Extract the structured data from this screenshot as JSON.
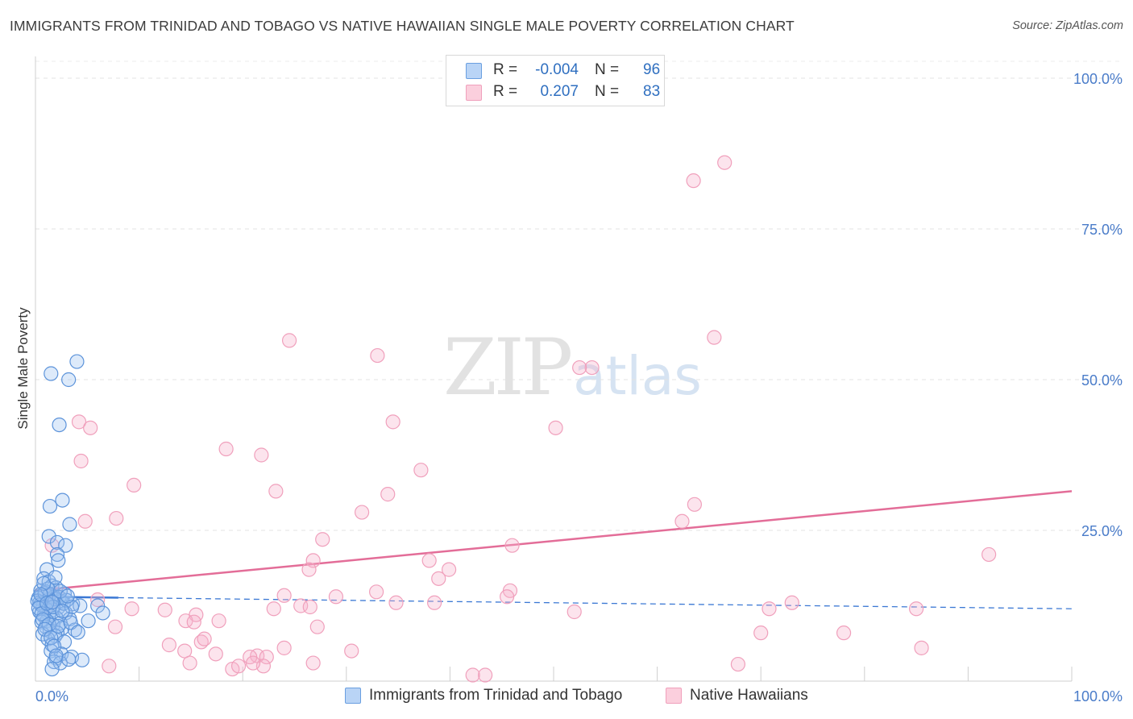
{
  "title": "IMMIGRANTS FROM TRINIDAD AND TOBAGO VS NATIVE HAWAIIAN SINGLE MALE POVERTY CORRELATION CHART",
  "source": "Source: ZipAtlas.com",
  "watermark": {
    "zip": "ZIP",
    "atlas": "atlas"
  },
  "legend": {
    "r_label": "R =",
    "n_label": "N =",
    "rows": [
      {
        "r": "-0.004",
        "n": "96"
      },
      {
        "r": "0.207",
        "n": "83"
      }
    ]
  },
  "bottom_legend": [
    "Immigrants from Trinidad and Tobago",
    "Native Hawaiians"
  ],
  "chart_data": {
    "type": "scatter",
    "title": "IMMIGRANTS FROM TRINIDAD AND TOBAGO VS NATIVE HAWAIIAN SINGLE MALE POVERTY CORRELATION CHART",
    "xlabel": "",
    "ylabel": "Single Male Poverty",
    "xlim": [
      0,
      100
    ],
    "ylim": [
      0,
      102
    ],
    "x_tick_labels": [
      "0.0%",
      "100.0%"
    ],
    "y_ticks": [
      25,
      50,
      75,
      100
    ],
    "y_tick_labels": [
      "25.0%",
      "50.0%",
      "75.0%",
      "100.0%"
    ],
    "grid": true,
    "legend_position": "top-center",
    "colors": {
      "blue": "#6a9fe0",
      "blue_line": "#3b78d4",
      "pink": "#f0a0bc",
      "pink_line": "#e36d98"
    },
    "series": [
      {
        "name": "Immigrants from Trinidad and Tobago",
        "r": -0.004,
        "n": 96,
        "trend": {
          "x0": 0,
          "y0": 14.0,
          "x1": 100,
          "y1": 12.0,
          "solid_until_x": 8
        },
        "points": [
          [
            4.0,
            53.0
          ],
          [
            1.5,
            51.0
          ],
          [
            3.2,
            50.0
          ],
          [
            2.3,
            42.5
          ],
          [
            2.6,
            30.0
          ],
          [
            1.4,
            29.0
          ],
          [
            3.3,
            26.0
          ],
          [
            1.3,
            24.0
          ],
          [
            2.1,
            23.0
          ],
          [
            2.9,
            22.5
          ],
          [
            2.1,
            21.0
          ],
          [
            2.2,
            20.0
          ],
          [
            1.1,
            18.5
          ],
          [
            0.8,
            17.0
          ],
          [
            1.3,
            16.5
          ],
          [
            1.6,
            15.8
          ],
          [
            2.0,
            15.5
          ],
          [
            0.5,
            15.0
          ],
          [
            1.0,
            14.8
          ],
          [
            2.8,
            14.5
          ],
          [
            0.6,
            14.2
          ],
          [
            1.8,
            14.0
          ],
          [
            0.3,
            13.8
          ],
          [
            1.2,
            13.5
          ],
          [
            2.5,
            13.2
          ],
          [
            0.9,
            13.0
          ],
          [
            3.6,
            12.8
          ],
          [
            1.5,
            12.6
          ],
          [
            0.7,
            12.4
          ],
          [
            2.2,
            12.2
          ],
          [
            4.3,
            12.5
          ],
          [
            1.0,
            12.0
          ],
          [
            1.6,
            11.8
          ],
          [
            0.4,
            11.5
          ],
          [
            2.9,
            11.3
          ],
          [
            1.3,
            11.0
          ],
          [
            0.8,
            10.8
          ],
          [
            2.0,
            10.5
          ],
          [
            3.3,
            10.3
          ],
          [
            1.1,
            10.0
          ],
          [
            0.6,
            9.8
          ],
          [
            2.4,
            9.6
          ],
          [
            5.1,
            10.0
          ],
          [
            1.7,
            9.3
          ],
          [
            1.0,
            9.0
          ],
          [
            2.6,
            8.8
          ],
          [
            3.8,
            8.5
          ],
          [
            1.4,
            8.3
          ],
          [
            2.1,
            8.0
          ],
          [
            0.7,
            7.8
          ],
          [
            1.9,
            7.5
          ],
          [
            1.2,
            7.0
          ],
          [
            2.8,
            6.5
          ],
          [
            1.6,
            6.0
          ],
          [
            1.5,
            5.0
          ],
          [
            2.5,
            4.5
          ],
          [
            3.5,
            4.0
          ],
          [
            2.0,
            3.8
          ],
          [
            4.5,
            3.5
          ],
          [
            1.8,
            3.2
          ],
          [
            2.4,
            3.0
          ],
          [
            1.6,
            2.0
          ],
          [
            0.4,
            13.0
          ],
          [
            0.5,
            12.7
          ],
          [
            0.2,
            13.3
          ],
          [
            0.3,
            12.1
          ],
          [
            0.9,
            14.6
          ],
          [
            1.4,
            14.4
          ],
          [
            1.9,
            13.6
          ],
          [
            2.3,
            13.9
          ],
          [
            2.7,
            12.9
          ],
          [
            3.0,
            13.4
          ],
          [
            3.5,
            12.3
          ],
          [
            0.6,
            11.2
          ],
          [
            1.7,
            12.3
          ],
          [
            2.6,
            11.6
          ],
          [
            1.2,
            15.3
          ],
          [
            0.8,
            16.2
          ],
          [
            1.9,
            17.2
          ],
          [
            2.4,
            14.9
          ],
          [
            0.5,
            14.4
          ],
          [
            1.1,
            12.9
          ],
          [
            1.6,
            13.1
          ],
          [
            3.1,
            14.1
          ],
          [
            0.7,
            10.2
          ],
          [
            1.3,
            9.4
          ],
          [
            2.2,
            9.1
          ],
          [
            3.4,
            9.7
          ],
          [
            0.9,
            8.6
          ],
          [
            1.5,
            7.2
          ],
          [
            4.1,
            8.1
          ],
          [
            1.8,
            5.8
          ],
          [
            2.0,
            4.2
          ],
          [
            3.2,
            3.6
          ],
          [
            6.0,
            12.5
          ],
          [
            6.5,
            11.3
          ]
        ]
      },
      {
        "name": "Native Hawaiians",
        "r": 0.207,
        "n": 83,
        "trend": {
          "x0": 0,
          "y0": 15.0,
          "x1": 100,
          "y1": 31.5
        },
        "points": [
          [
            66.5,
            86.0
          ],
          [
            63.5,
            83.0
          ],
          [
            65.5,
            57.0
          ],
          [
            24.5,
            56.5
          ],
          [
            33.0,
            54.0
          ],
          [
            53.7,
            52.0
          ],
          [
            52.5,
            52.0
          ],
          [
            34.5,
            43.0
          ],
          [
            4.2,
            43.0
          ],
          [
            5.3,
            42.0
          ],
          [
            50.2,
            42.0
          ],
          [
            18.4,
            38.5
          ],
          [
            21.8,
            37.5
          ],
          [
            4.4,
            36.5
          ],
          [
            37.2,
            35.0
          ],
          [
            9.5,
            32.5
          ],
          [
            23.2,
            31.5
          ],
          [
            34.0,
            31.0
          ],
          [
            63.6,
            29.3
          ],
          [
            31.5,
            28.0
          ],
          [
            7.8,
            27.0
          ],
          [
            4.8,
            26.5
          ],
          [
            62.4,
            26.5
          ],
          [
            27.7,
            23.5
          ],
          [
            1.6,
            22.5
          ],
          [
            46.0,
            22.5
          ],
          [
            92.0,
            21.0
          ],
          [
            26.8,
            20.0
          ],
          [
            38.0,
            20.0
          ],
          [
            26.4,
            18.5
          ],
          [
            39.9,
            18.5
          ],
          [
            38.9,
            17.0
          ],
          [
            45.8,
            15.0
          ],
          [
            32.9,
            14.8
          ],
          [
            45.5,
            14.0
          ],
          [
            29.0,
            14.0
          ],
          [
            24.0,
            14.2
          ],
          [
            38.5,
            13.0
          ],
          [
            34.8,
            13.0
          ],
          [
            25.6,
            12.5
          ],
          [
            26.5,
            12.3
          ],
          [
            70.8,
            12.0
          ],
          [
            6.0,
            13.5
          ],
          [
            9.3,
            12.0
          ],
          [
            12.5,
            11.8
          ],
          [
            23.0,
            12.0
          ],
          [
            85.0,
            12.0
          ],
          [
            73.0,
            13.0
          ],
          [
            15.5,
            11.0
          ],
          [
            14.5,
            10.0
          ],
          [
            15.3,
            9.8
          ],
          [
            17.7,
            10.0
          ],
          [
            52.0,
            11.5
          ],
          [
            7.7,
            9.0
          ],
          [
            27.2,
            9.0
          ],
          [
            70.0,
            8.0
          ],
          [
            78.0,
            8.0
          ],
          [
            12.9,
            6.0
          ],
          [
            14.4,
            5.0
          ],
          [
            21.4,
            4.2
          ],
          [
            20.7,
            4.0
          ],
          [
            22.3,
            4.0
          ],
          [
            22.0,
            2.5
          ],
          [
            14.9,
            3.0
          ],
          [
            7.1,
            2.5
          ],
          [
            17.4,
            4.5
          ],
          [
            19.0,
            2.0
          ],
          [
            19.6,
            2.5
          ],
          [
            21.0,
            3.0
          ],
          [
            26.8,
            3.0
          ],
          [
            85.5,
            5.5
          ],
          [
            67.8,
            2.8
          ],
          [
            42.2,
            1.0
          ],
          [
            43.4,
            1.0
          ],
          [
            24.0,
            5.5
          ],
          [
            16.0,
            6.5
          ],
          [
            16.3,
            7.0
          ],
          [
            30.5,
            5.0
          ],
          [
            1.0,
            13.0
          ],
          [
            1.5,
            13.5
          ],
          [
            0.8,
            14.0
          ],
          [
            2.0,
            14.5
          ],
          [
            1.2,
            12.5
          ]
        ]
      }
    ]
  }
}
